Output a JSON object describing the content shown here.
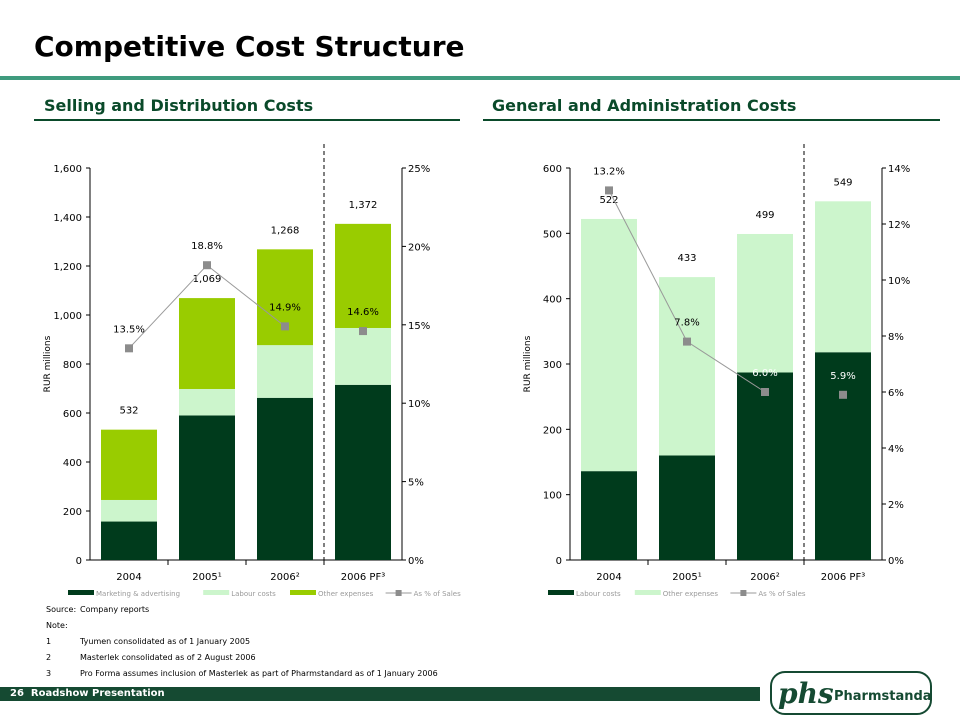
{
  "page": {
    "title": "Competitive Cost Structure",
    "footer_page": "26",
    "footer_text": "Roadshow Presentation",
    "logo_text": "Pharmstandard",
    "logo_mark": "phs"
  },
  "notes": [
    {
      "k": "Source:",
      "v": "Company reports"
    },
    {
      "k": "Note:",
      "v": ""
    },
    {
      "k": "1",
      "v": "Tyumen consolidated as of 1 January 2005"
    },
    {
      "k": "2",
      "v": "Masterlek consolidated as of 2 August 2006"
    },
    {
      "k": "3",
      "v": "Pro Forma assumes inclusion of Masterlek as part of Pharmstandard as of 1 January 2006"
    }
  ],
  "chart_data": [
    {
      "type": "bar",
      "stacked": true,
      "title": "Selling and Distribution Costs",
      "ylabel": "RUR millions",
      "categories": [
        "2004",
        "2005¹",
        "2006²",
        "2006 PF³"
      ],
      "series": [
        {
          "name": "Marketing & advertising",
          "color": "#003b1c",
          "values": [
            157,
            590,
            662,
            715
          ]
        },
        {
          "name": "Labour costs",
          "color": "#ccf5cc",
          "values": [
            88,
            108,
            215,
            232
          ]
        },
        {
          "name": "Other expenses",
          "color": "#99cc00",
          "values": [
            287,
            371,
            391,
            425
          ]
        }
      ],
      "totals": [
        "532",
        "1,069",
        "1,268",
        "1,372"
      ],
      "ratio": {
        "name": "As % of Sales",
        "values": [
          13.5,
          18.8,
          14.9,
          14.6
        ],
        "labels": [
          "13.5%",
          "18.8%",
          "14.9%",
          "14.6%"
        ],
        "line": [
          true,
          true,
          false
        ]
      },
      "ylim": [
        0,
        1600
      ],
      "yticks": [
        "0",
        "200",
        "400",
        "600",
        "800",
        "1,000",
        "1,200",
        "1,400",
        "1,600"
      ],
      "y2lim": [
        0,
        25
      ],
      "y2ticks": [
        "0%",
        "5%",
        "10%",
        "15%",
        "20%",
        "25%"
      ],
      "grid": false,
      "legend_position": "bottom"
    },
    {
      "type": "bar",
      "stacked": true,
      "title": "General and Administration Costs",
      "ylabel": "RUR millions",
      "categories": [
        "2004",
        "2005¹",
        "2006²",
        "2006 PF³"
      ],
      "series": [
        {
          "name": "Labour costs",
          "color": "#003b1c",
          "values": [
            136,
            160,
            287,
            318
          ]
        },
        {
          "name": "Other expenses",
          "color": "#ccf5cc",
          "values": [
            386,
            273,
            212,
            231
          ]
        }
      ],
      "totals": [
        "522",
        "433",
        "499",
        "549"
      ],
      "ratio": {
        "name": "As % of Sales",
        "values": [
          13.2,
          7.8,
          6.0,
          5.9
        ],
        "labels": [
          "13.2%",
          "7.8%",
          "6.0%",
          "5.9%"
        ],
        "line": [
          true,
          true,
          false
        ]
      },
      "ylim": [
        0,
        600
      ],
      "yticks": [
        "0",
        "100",
        "200",
        "300",
        "400",
        "500",
        "600"
      ],
      "y2lim": [
        0,
        14
      ],
      "y2ticks": [
        "0%",
        "2%",
        "4%",
        "6%",
        "8%",
        "10%",
        "12%",
        "14%"
      ],
      "grid": false,
      "legend_position": "bottom"
    }
  ]
}
